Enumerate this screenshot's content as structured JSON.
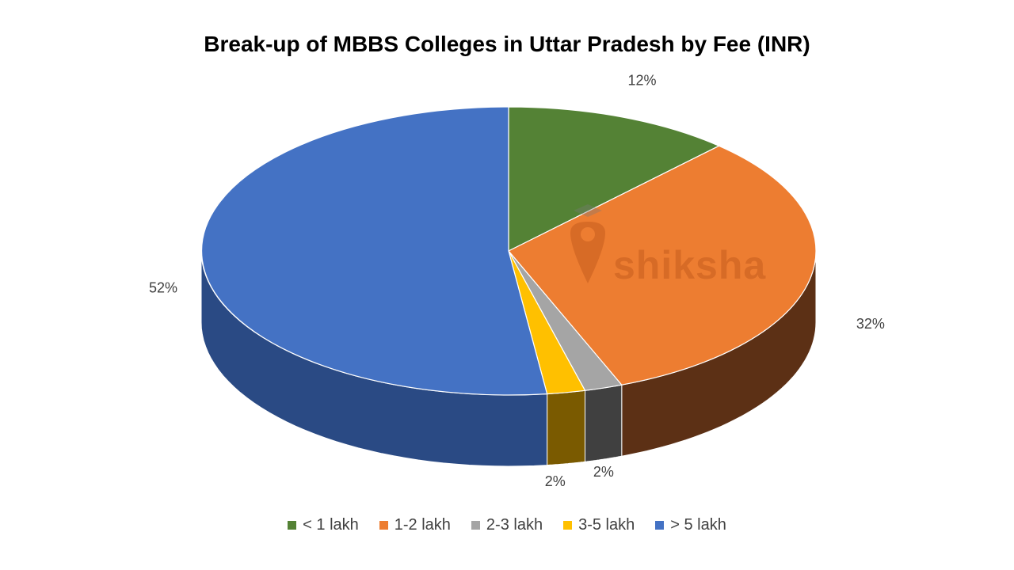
{
  "chart_data": {
    "type": "pie",
    "title": "Break-up of MBBS Colleges in Uttar Pradesh by Fee (INR)",
    "categories": [
      "< 1 lakh",
      "1-2 lakh",
      "2-3 lakh",
      "3-5 lakh",
      "> 5 lakh"
    ],
    "values": [
      12,
      32,
      2,
      2,
      52
    ],
    "value_labels": [
      "12%",
      "32%",
      "2%",
      "2%",
      "52%"
    ],
    "colors": [
      "#548235",
      "#ED7D31",
      "#A5A5A5",
      "#FFC000",
      "#4472C4"
    ],
    "side_colors": [
      "#2f4a1e",
      "#5c3015",
      "#404040",
      "#7a5a00",
      "#2a4a84"
    ],
    "legend_position": "bottom",
    "style": "3d-pie"
  },
  "watermark": {
    "text": "shiksha"
  }
}
